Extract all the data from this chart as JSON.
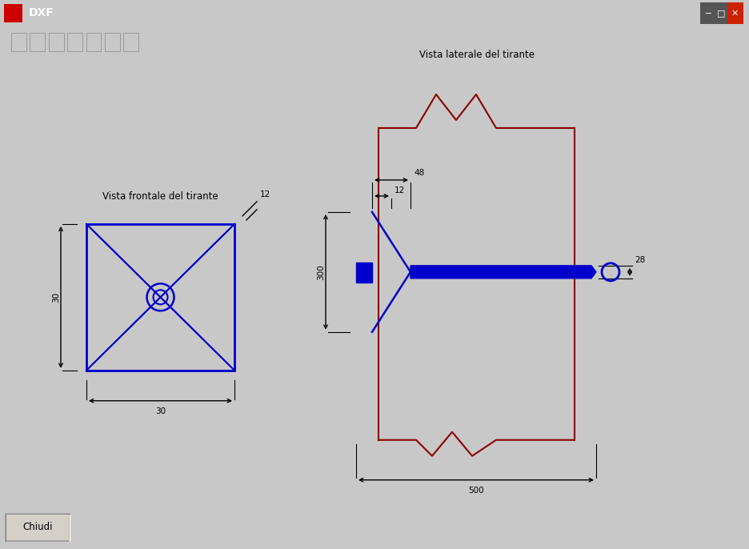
{
  "bg_color": "#c8c8c8",
  "canvas_color": "#ffffff",
  "blue": "#0000cc",
  "red": "#8b0000",
  "black": "#000000",
  "title_bar_color": "#000080",
  "title_bar_text": "DXF",
  "button_text": "Chiudi",
  "front_view_label": "Vista frontale del tirante",
  "side_view_label": "Vista laterale del tirante",
  "dim_30_width": "30",
  "dim_30_height": "30",
  "dim_12": "12",
  "dim_48": "48",
  "dim_12b": "12",
  "dim_300": "300",
  "dim_500": "500",
  "dim_28": "28"
}
